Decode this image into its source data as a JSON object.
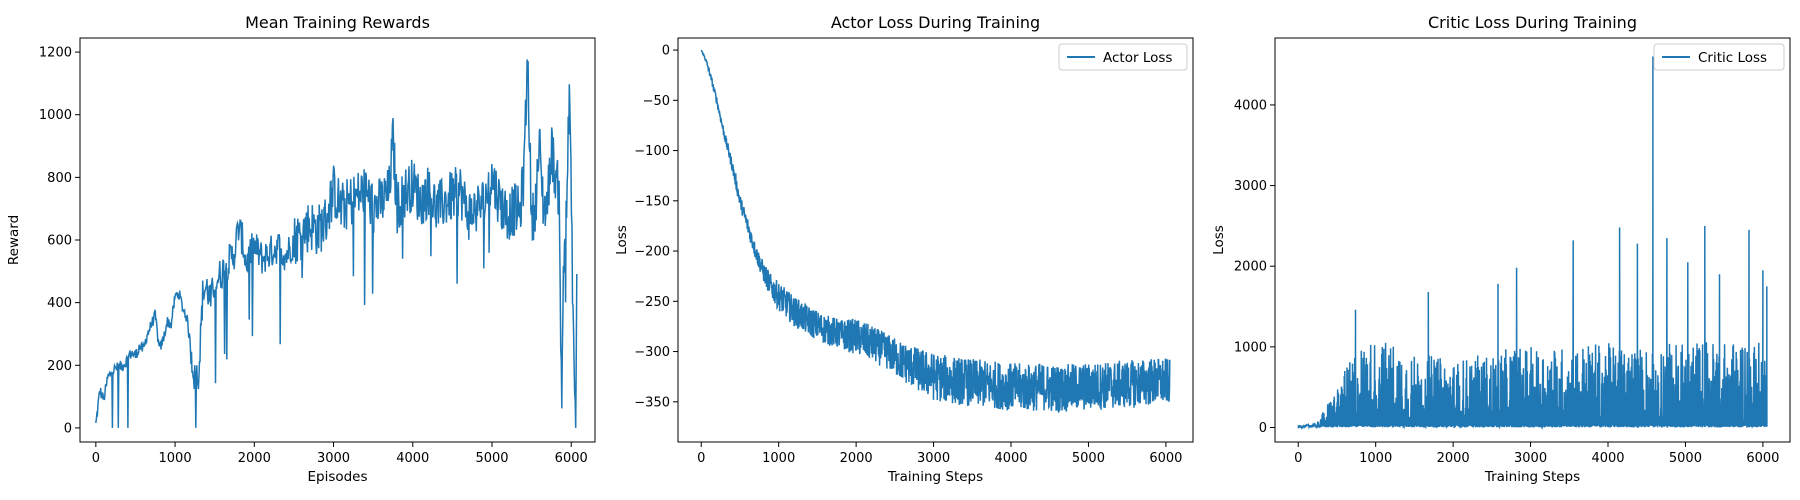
{
  "colors": {
    "series": "#1f77b4",
    "axes": "#000000",
    "legend_border": "#cccccc"
  },
  "chart_data": [
    {
      "type": "line",
      "title": "Mean Training Rewards",
      "xlabel": "Episodes",
      "ylabel": "Reward",
      "xlim": [
        -200,
        6300
      ],
      "ylim": [
        -45,
        1245
      ],
      "xticks": [
        0,
        1000,
        2000,
        3000,
        4000,
        5000,
        6000
      ],
      "yticks": [
        0,
        200,
        400,
        600,
        800,
        1000,
        1200
      ],
      "legend": null,
      "series": [
        {
          "x": [
            0,
            50,
            100,
            150,
            200,
            250,
            300,
            350,
            400,
            450,
            500,
            550,
            600,
            650,
            700,
            750,
            800,
            850,
            900,
            950,
            1000,
            1050,
            1100,
            1150,
            1200,
            1250,
            1300,
            1350,
            1400,
            1450,
            1500,
            1550,
            1600,
            1650,
            1700,
            1750,
            1800,
            1850,
            1900,
            1950,
            2000,
            2100,
            2200,
            2300,
            2400,
            2500,
            2600,
            2700,
            2800,
            2900,
            3000,
            3100,
            3200,
            3300,
            3400,
            3500,
            3600,
            3700,
            3750,
            3800,
            3900,
            4000,
            4100,
            4200,
            4300,
            4400,
            4500,
            4600,
            4700,
            4800,
            4900,
            5000,
            5100,
            5200,
            5300,
            5350,
            5400,
            5450,
            5500,
            5550,
            5600,
            5650,
            5700,
            5750,
            5800,
            5850,
            5880,
            5900,
            5950,
            5980,
            6000,
            6050,
            6060,
            6070
          ],
          "y": [
            10,
            120,
            90,
            160,
            180,
            190,
            195,
            200,
            220,
            240,
            230,
            260,
            250,
            300,
            330,
            360,
            250,
            280,
            340,
            330,
            420,
            430,
            380,
            350,
            250,
            150,
            180,
            430,
            450,
            400,
            470,
            480,
            500,
            520,
            540,
            560,
            640,
            600,
            520,
            560,
            580,
            540,
            560,
            580,
            550,
            600,
            620,
            650,
            630,
            660,
            760,
            700,
            720,
            740,
            760,
            700,
            720,
            750,
            920,
            700,
            750,
            780,
            720,
            760,
            700,
            720,
            740,
            760,
            680,
            700,
            720,
            800,
            720,
            680,
            700,
            680,
            800,
            1190,
            650,
            720,
            900,
            700,
            720,
            900,
            800,
            750,
            10,
            500,
            800,
            1100,
            700,
            10,
            10,
            530
          ]
        }
      ]
    },
    {
      "type": "line",
      "title": "Actor Loss During Training",
      "xlabel": "Training Steps",
      "ylabel": "Loss",
      "xlim": [
        -300,
        6350
      ],
      "ylim": [
        -390,
        12
      ],
      "xticks": [
        0,
        1000,
        2000,
        3000,
        4000,
        5000,
        6000
      ],
      "yticks": [
        0,
        -50,
        -100,
        -150,
        -200,
        -250,
        -300,
        -350
      ],
      "legend": {
        "position": "top-right",
        "entries": [
          "Actor Loss"
        ]
      },
      "series": [
        {
          "name": "Actor Loss",
          "x": [
            0,
            50,
            100,
            200,
            300,
            400,
            500,
            600,
            700,
            800,
            900,
            1000,
            1200,
            1400,
            1600,
            1800,
            2000,
            2200,
            2400,
            2600,
            2800,
            3000,
            3200,
            3400,
            3600,
            3800,
            4000,
            4200,
            4400,
            4600,
            4800,
            5000,
            5200,
            5400,
            5600,
            5800,
            6000,
            6050
          ],
          "y": [
            0,
            -8,
            -20,
            -50,
            -85,
            -115,
            -150,
            -175,
            -200,
            -220,
            -235,
            -245,
            -260,
            -270,
            -278,
            -283,
            -285,
            -292,
            -300,
            -310,
            -318,
            -325,
            -328,
            -330,
            -332,
            -333,
            -335,
            -336,
            -335,
            -337,
            -336,
            -335,
            -334,
            -333,
            -332,
            -330,
            -330,
            -330
          ],
          "band": [
            0,
            2,
            3,
            4,
            5,
            6,
            7,
            8,
            8,
            10,
            12,
            14,
            15,
            15,
            15,
            15,
            18,
            18,
            18,
            20,
            22,
            24,
            24,
            24,
            24,
            24,
            24,
            24,
            24,
            24,
            24,
            24,
            24,
            24,
            24,
            24,
            24,
            22
          ]
        }
      ]
    },
    {
      "type": "line",
      "title": "Critic Loss During Training",
      "xlabel": "Training Steps",
      "ylabel": "Loss",
      "xlim": [
        -300,
        6350
      ],
      "ylim": [
        -180,
        4830
      ],
      "xticks": [
        0,
        1000,
        2000,
        3000,
        4000,
        5000,
        6000
      ],
      "yticks": [
        0,
        1000,
        2000,
        3000,
        4000
      ],
      "legend": {
        "position": "top-right",
        "entries": [
          "Critic Loss"
        ]
      },
      "series": [
        {
          "name": "Critic Loss",
          "x": [
            0,
            250,
            500,
            750,
            1000,
            1250,
            1500,
            1750,
            2000,
            2250,
            2500,
            2750,
            3000,
            3250,
            3500,
            3750,
            4000,
            4250,
            4500,
            4750,
            5000,
            5250,
            5500,
            5750,
            6000,
            6050
          ],
          "y": [
            0,
            80,
            500,
            1000,
            1100,
            1050,
            900,
            900,
            800,
            900,
            900,
            1000,
            1000,
            1000,
            1000,
            1050,
            1050,
            1000,
            1000,
            1050,
            1050,
            1100,
            1050,
            1100,
            1050,
            800
          ],
          "spikes": [
            [
              740,
              1460
            ],
            [
              1680,
              1680
            ],
            [
              2580,
              1780
            ],
            [
              2820,
              1980
            ],
            [
              3550,
              2320
            ],
            [
              4150,
              2480
            ],
            [
              4380,
              2280
            ],
            [
              4580,
              4600
            ],
            [
              4760,
              2350
            ],
            [
              5030,
              2050
            ],
            [
              5250,
              2500
            ],
            [
              5440,
              1900
            ],
            [
              5820,
              2450
            ],
            [
              6000,
              1950
            ],
            [
              6050,
              1750
            ]
          ]
        }
      ]
    }
  ]
}
